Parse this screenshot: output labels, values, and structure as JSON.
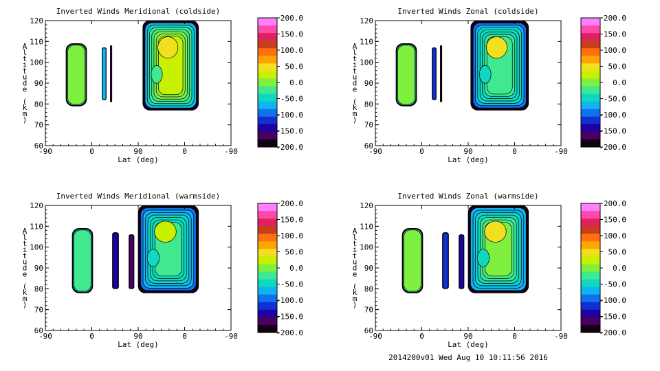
{
  "footer": "2014200v01 Wed Aug 10 10:11:56 2016",
  "palette": [
    "#ff80ff",
    "#ff4aa8",
    "#e02060",
    "#c8401a",
    "#ff7010",
    "#ffa500",
    "#f0e020",
    "#c8f000",
    "#80f040",
    "#40e890",
    "#10d8c0",
    "#10b4f0",
    "#1070f0",
    "#1030d0",
    "#2000a0",
    "#4a0060",
    "#140014"
  ],
  "chart_data": [
    {
      "type": "heatmap",
      "title": "Inverted Winds Meridional (coldside)",
      "xlabel": "Lat (deg)",
      "ylabel": "Altitude (km)",
      "xticks": [
        "-90",
        "0",
        "90",
        "0",
        "-90"
      ],
      "yticks": [
        60,
        70,
        80,
        90,
        100,
        110,
        120
      ],
      "ylim": [
        60,
        120
      ],
      "colorbar": {
        "min": -200,
        "max": 200,
        "labels": [
          "200.0",
          "150.0",
          "100.0",
          "50.0",
          "0.0",
          "-50.0",
          "-100.0",
          "-150.0",
          "-200.0"
        ]
      },
      "blocks": [
        {
          "x0": -50,
          "x1": -10,
          "y0": 79,
          "y1": 109,
          "level": 20
        },
        {
          "x0": 20,
          "x1": 28,
          "y0": 82,
          "y1": 107,
          "level": -60
        },
        {
          "x0": 36,
          "x1": 39,
          "y0": 81,
          "y1": 108,
          "level": -180
        },
        {
          "x0": 99,
          "x1": 207,
          "y0": 77,
          "y1": 120,
          "level": 15,
          "hot": 55
        }
      ]
    },
    {
      "type": "heatmap",
      "title": "Inverted Winds Zonal (coldside)",
      "xlabel": "Lat (deg)",
      "ylabel": "Altitude (km)",
      "xticks": [
        "-90",
        "0",
        "90",
        "0",
        "-90"
      ],
      "yticks": [
        60,
        70,
        80,
        90,
        100,
        110,
        120
      ],
      "ylim": [
        60,
        120
      ],
      "colorbar": {
        "min": -200,
        "max": 200,
        "labels": [
          "200.0",
          "150.0",
          "100.0",
          "50.0",
          "0.0",
          "-50.0",
          "-100.0",
          "-150.0",
          "-200.0"
        ]
      },
      "blocks": [
        {
          "x0": -50,
          "x1": -10,
          "y0": 79,
          "y1": 109,
          "level": 10,
          "hot": 60
        },
        {
          "x0": 20,
          "x1": 28,
          "y0": 82,
          "y1": 107,
          "level": -110
        },
        {
          "x0": 36,
          "x1": 39,
          "y0": 81,
          "y1": 108,
          "level": -190
        },
        {
          "x0": 95,
          "x1": 207,
          "y0": 77,
          "y1": 120,
          "level": -20,
          "hot": 40
        }
      ]
    },
    {
      "type": "heatmap",
      "title": "Inverted Winds Meridional (warmside)",
      "xlabel": "Lat (deg)",
      "ylabel": "Altitude (km)",
      "xticks": [
        "-90",
        "0",
        "90",
        "0",
        "-90"
      ],
      "yticks": [
        60,
        70,
        80,
        90,
        100,
        110,
        120
      ],
      "ylim": [
        60,
        120
      ],
      "colorbar": {
        "min": -200,
        "max": 200,
        "labels": [
          "200.0",
          "150.0",
          "100.0",
          "50.0",
          "0.0",
          "-50.0",
          "-100.0",
          "-150.0",
          "-200.0"
        ]
      },
      "blocks": [
        {
          "x0": -38,
          "x1": 2,
          "y0": 78,
          "y1": 109,
          "level": -10,
          "hot": 45
        },
        {
          "x0": 40,
          "x1": 52,
          "y0": 80,
          "y1": 107,
          "level": -150
        },
        {
          "x0": 72,
          "x1": 82,
          "y0": 80,
          "y1": 106,
          "level": -160
        },
        {
          "x0": 90,
          "x1": 207,
          "y0": 78,
          "y1": 120,
          "level": -30,
          "hot": 20
        }
      ]
    },
    {
      "type": "heatmap",
      "title": "Inverted Winds Zonal (warmside)",
      "xlabel": "Lat (deg)",
      "ylabel": "Altitude (km)",
      "xticks": [
        "-90",
        "0",
        "90",
        "0",
        "-90"
      ],
      "yticks": [
        60,
        70,
        80,
        90,
        100,
        110,
        120
      ],
      "ylim": [
        60,
        120
      ],
      "colorbar": {
        "min": -200,
        "max": 200,
        "labels": [
          "200.0",
          "150.0",
          "100.0",
          "50.0",
          "0.0",
          "-50.0",
          "-100.0",
          "-150.0",
          "-200.0"
        ]
      },
      "blocks": [
        {
          "x0": -38,
          "x1": 2,
          "y0": 78,
          "y1": 109,
          "level": 20,
          "hot": 45
        },
        {
          "x0": 40,
          "x1": 52,
          "y0": 80,
          "y1": 107,
          "level": -130
        },
        {
          "x0": 72,
          "x1": 82,
          "y0": 80,
          "y1": 106,
          "level": -150
        },
        {
          "x0": 90,
          "x1": 207,
          "y0": 78,
          "y1": 120,
          "level": -10,
          "hot": 40
        }
      ]
    }
  ]
}
